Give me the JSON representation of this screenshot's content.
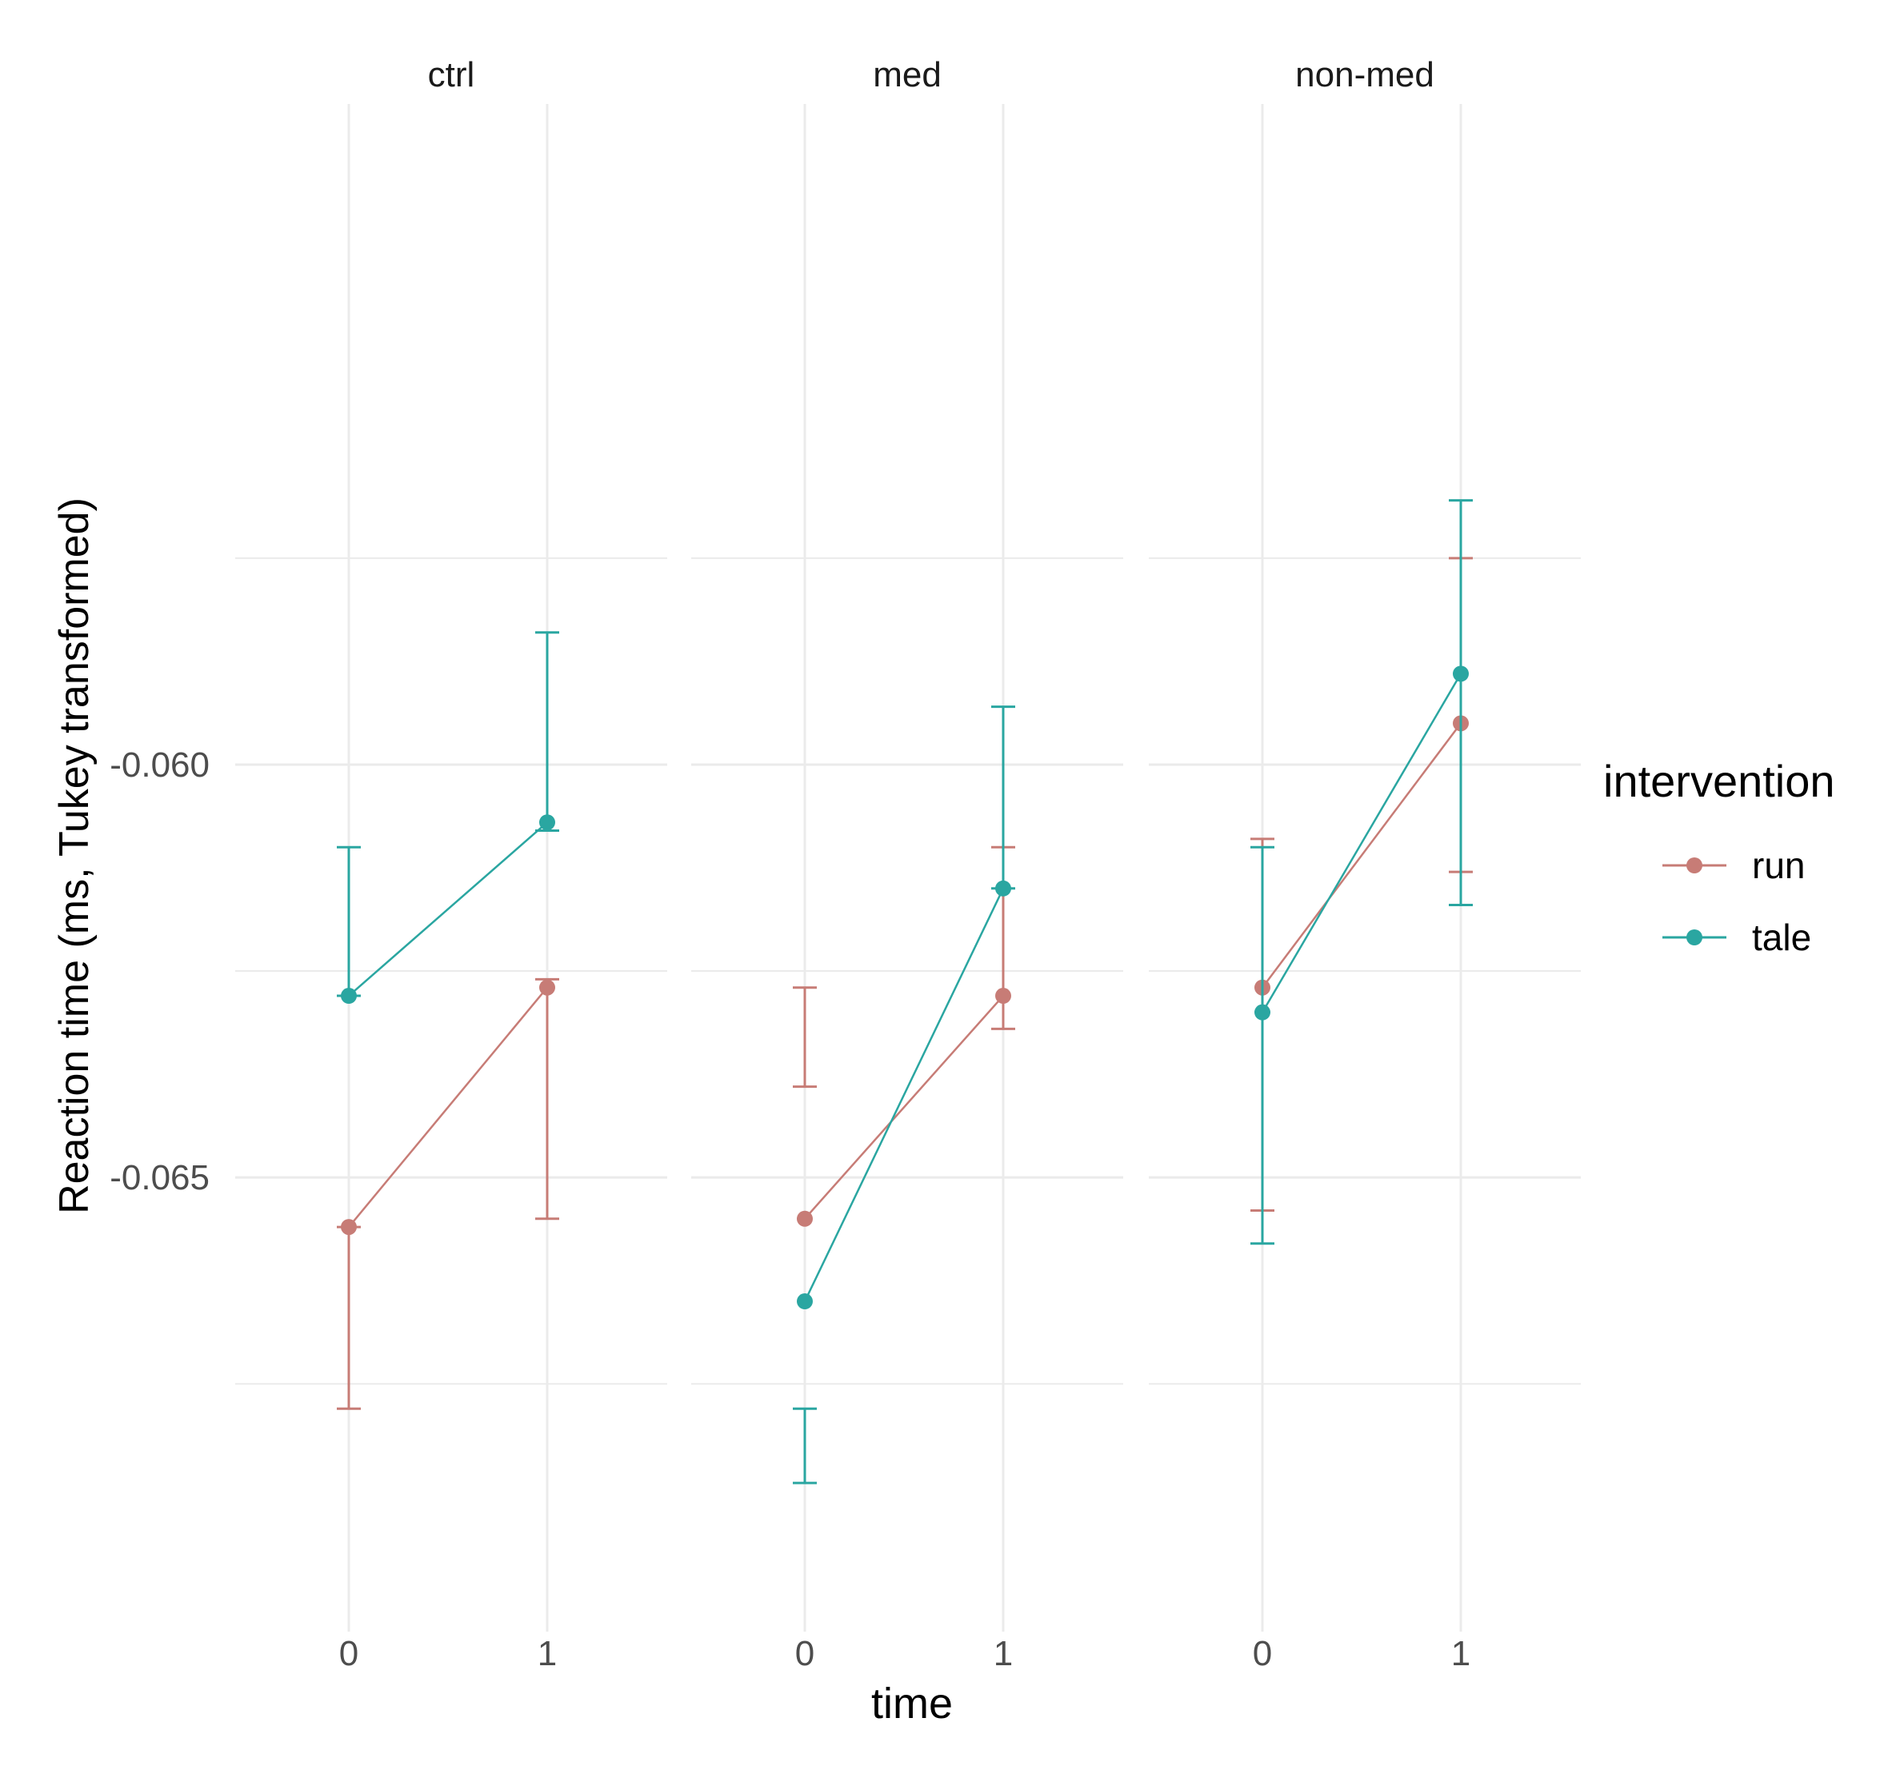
{
  "chart_data": {
    "type": "line",
    "title": "",
    "xlabel": "time",
    "ylabel": "Reaction time (ms, Tukey transformed)",
    "y_ticks": [
      -0.06,
      -0.065
    ],
    "y_tick_labels": [
      "-0.060",
      "-0.065"
    ],
    "ylim": [
      -0.0705,
      -0.052
    ],
    "x_categories": [
      "0",
      "1"
    ],
    "grid": true,
    "legend": {
      "title": "intervention",
      "position": "right",
      "entries": [
        "run",
        "tale"
      ]
    },
    "colors": {
      "run": "#C77C76",
      "tale": "#2AA6A1",
      "grid": "#EBEBEB",
      "text": "#4D4D4D"
    },
    "panels": [
      {
        "name": "ctrl",
        "series": [
          {
            "name": "run",
            "x": [
              "0",
              "1"
            ],
            "y": [
              -0.0656,
              -0.0627
            ],
            "ymin": [
              -0.0678,
              -0.0655
            ],
            "ymax": [
              -0.0656,
              -0.0626
            ]
          },
          {
            "name": "tale",
            "x": [
              "0",
              "1"
            ],
            "y": [
              -0.0628,
              -0.0607
            ],
            "ymin": [
              -0.0628,
              -0.0608
            ],
            "ymax": [
              -0.061,
              -0.0584
            ]
          }
        ]
      },
      {
        "name": "med",
        "series": [
          {
            "name": "run",
            "x": [
              "0",
              "1"
            ],
            "y": [
              -0.0655,
              -0.0628
            ],
            "ymin": [
              -0.0639,
              -0.0632
            ],
            "ymax": [
              -0.0627,
              -0.061
            ]
          },
          {
            "name": "tale",
            "x": [
              "0",
              "1"
            ],
            "y": [
              -0.0665,
              -0.0615
            ],
            "ymin": [
              -0.0687,
              -0.0615
            ],
            "ymax": [
              -0.0678,
              -0.0593
            ]
          }
        ]
      },
      {
        "name": "non-med",
        "series": [
          {
            "name": "run",
            "x": [
              "0",
              "1"
            ],
            "y": [
              -0.0627,
              -0.0595
            ],
            "ymin": [
              -0.0654,
              -0.0613
            ],
            "ymax": [
              -0.0609,
              -0.0575
            ]
          },
          {
            "name": "tale",
            "x": [
              "0",
              "1"
            ],
            "y": [
              -0.063,
              -0.0589
            ],
            "ymin": [
              -0.0658,
              -0.0617
            ],
            "ymax": [
              -0.061,
              -0.0568
            ]
          }
        ]
      }
    ]
  }
}
